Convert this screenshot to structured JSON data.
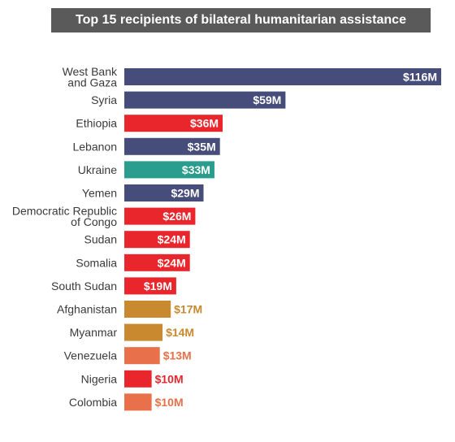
{
  "chart_data": {
    "type": "bar",
    "orientation": "horizontal",
    "title": "Top 15 recipients of bilateral humanitarian assistance",
    "categories": [
      "West Bank and Gaza",
      "Syria",
      "Ethiopia",
      "Lebanon",
      "Ukraine",
      "Yemen",
      "Democratic Republic of Congo",
      "Sudan",
      "Somalia",
      "South Sudan",
      "Afghanistan",
      "Myanmar",
      "Venezuela",
      "Nigeria",
      "Colombia"
    ],
    "category_lines": [
      [
        "West Bank",
        "and Gaza"
      ],
      [
        "Syria"
      ],
      [
        "Ethiopia"
      ],
      [
        "Lebanon"
      ],
      [
        "Ukraine"
      ],
      [
        "Yemen"
      ],
      [
        "Democratic Republic",
        "of Congo"
      ],
      [
        "Sudan"
      ],
      [
        "Somalia"
      ],
      [
        "South Sudan"
      ],
      [
        "Afghanistan"
      ],
      [
        "Myanmar"
      ],
      [
        "Venezuela"
      ],
      [
        "Nigeria"
      ],
      [
        "Colombia"
      ]
    ],
    "values": [
      116,
      59,
      36,
      35,
      33,
      29,
      26,
      24,
      24,
      19,
      17,
      14,
      13,
      10,
      10
    ],
    "value_labels": [
      "$116M",
      "$59M",
      "$36M",
      "$35M",
      "$33M",
      "$29M",
      "$26M",
      "$24M",
      "$24M",
      "$19M",
      "$17M",
      "$14M",
      "$13M",
      "$10M",
      "$10M"
    ],
    "colors": [
      "#474d7a",
      "#474d7a",
      "#e8262c",
      "#474d7a",
      "#2a9d8f",
      "#474d7a",
      "#e8262c",
      "#e8262c",
      "#e8262c",
      "#e8262c",
      "#c8892f",
      "#c8892f",
      "#e8704a",
      "#e8262c",
      "#e8704a"
    ],
    "xlim": [
      0,
      116
    ],
    "grid": false,
    "legend": "none"
  }
}
